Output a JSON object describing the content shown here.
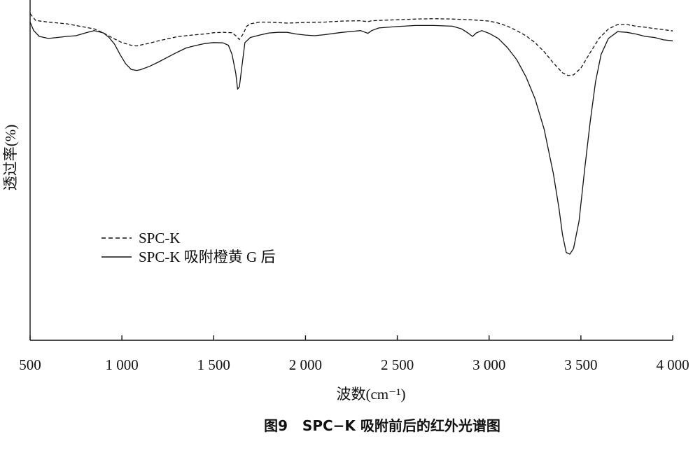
{
  "caption": "图9   SPC−K 吸附前后的红外光谱图",
  "chart_data": {
    "type": "line",
    "xlabel": "波数(cm⁻¹)",
    "ylabel": "透过率(%)",
    "xlim": [
      500,
      4000
    ],
    "ylim": [
      0,
      100
    ],
    "x_ticks": [
      500,
      1000,
      1500,
      2000,
      2500,
      3000,
      3500,
      4000
    ],
    "x_tick_labels": [
      "500",
      "1 000",
      "1 500",
      "2 000",
      "2 500",
      "3 000",
      "3 500",
      "4 000"
    ],
    "y_ticks_shown": false,
    "grid": false,
    "legend_position": "middle-left",
    "series": [
      {
        "name": "SPC-K",
        "style": "dashed",
        "color": "#111111",
        "points": [
          [
            500,
            96
          ],
          [
            530,
            94
          ],
          [
            600,
            93.5
          ],
          [
            700,
            93
          ],
          [
            800,
            92
          ],
          [
            850,
            91.5
          ],
          [
            900,
            90.3
          ],
          [
            950,
            88.8
          ],
          [
            1000,
            87.5
          ],
          [
            1050,
            86.7
          ],
          [
            1080,
            86.5
          ],
          [
            1150,
            87.3
          ],
          [
            1200,
            88
          ],
          [
            1300,
            89.2
          ],
          [
            1350,
            89.5
          ],
          [
            1400,
            89.8
          ],
          [
            1450,
            90
          ],
          [
            1500,
            90.4
          ],
          [
            1550,
            90.5
          ],
          [
            1600,
            90.4
          ],
          [
            1620,
            89.5
          ],
          [
            1640,
            88.4
          ],
          [
            1660,
            90
          ],
          [
            1680,
            92.3
          ],
          [
            1700,
            93
          ],
          [
            1750,
            93.5
          ],
          [
            1800,
            93.5
          ],
          [
            1900,
            93.2
          ],
          [
            2000,
            93.4
          ],
          [
            2100,
            93.5
          ],
          [
            2200,
            93.8
          ],
          [
            2300,
            93.9
          ],
          [
            2340,
            93.6
          ],
          [
            2360,
            93.9
          ],
          [
            2400,
            94
          ],
          [
            2500,
            94.2
          ],
          [
            2600,
            94.4
          ],
          [
            2700,
            94.5
          ],
          [
            2800,
            94.4
          ],
          [
            2900,
            94.2
          ],
          [
            3000,
            93.8
          ],
          [
            3050,
            93.2
          ],
          [
            3100,
            92.3
          ],
          [
            3150,
            91
          ],
          [
            3200,
            89.5
          ],
          [
            3250,
            87.5
          ],
          [
            3300,
            84.8
          ],
          [
            3350,
            81.5
          ],
          [
            3400,
            78.6
          ],
          [
            3430,
            77.8
          ],
          [
            3460,
            78
          ],
          [
            3500,
            80
          ],
          [
            3550,
            84.5
          ],
          [
            3600,
            88.8
          ],
          [
            3650,
            91.5
          ],
          [
            3700,
            92.8
          ],
          [
            3750,
            92.8
          ],
          [
            3800,
            92.3
          ],
          [
            3850,
            92
          ],
          [
            3900,
            91.6
          ],
          [
            3950,
            91.3
          ],
          [
            4000,
            90.9
          ]
        ]
      },
      {
        "name": "SPC-K 吸附橙黄 G 后",
        "style": "solid",
        "color": "#111111",
        "points": [
          [
            500,
            93.5
          ],
          [
            520,
            91
          ],
          [
            550,
            89.3
          ],
          [
            600,
            88.7
          ],
          [
            650,
            89
          ],
          [
            700,
            89.3
          ],
          [
            750,
            89.5
          ],
          [
            800,
            90.3
          ],
          [
            850,
            91
          ],
          [
            900,
            90.3
          ],
          [
            930,
            89
          ],
          [
            960,
            87
          ],
          [
            990,
            84
          ],
          [
            1020,
            81.3
          ],
          [
            1050,
            79.6
          ],
          [
            1080,
            79.3
          ],
          [
            1100,
            79.5
          ],
          [
            1150,
            80.5
          ],
          [
            1200,
            81.8
          ],
          [
            1250,
            83.2
          ],
          [
            1300,
            84.6
          ],
          [
            1350,
            85.9
          ],
          [
            1400,
            86.6
          ],
          [
            1450,
            87.2
          ],
          [
            1500,
            87.5
          ],
          [
            1550,
            87.4
          ],
          [
            1580,
            86.7
          ],
          [
            1600,
            84
          ],
          [
            1620,
            78.5
          ],
          [
            1630,
            73.8
          ],
          [
            1640,
            74.5
          ],
          [
            1655,
            81
          ],
          [
            1670,
            87.5
          ],
          [
            1700,
            89
          ],
          [
            1750,
            89.7
          ],
          [
            1800,
            90.3
          ],
          [
            1850,
            90.5
          ],
          [
            1900,
            90.5
          ],
          [
            1950,
            90
          ],
          [
            2000,
            89.7
          ],
          [
            2050,
            89.5
          ],
          [
            2100,
            89.8
          ],
          [
            2200,
            90.5
          ],
          [
            2300,
            91
          ],
          [
            2340,
            90.2
          ],
          [
            2360,
            91
          ],
          [
            2400,
            91.8
          ],
          [
            2500,
            92.2
          ],
          [
            2600,
            92.5
          ],
          [
            2700,
            92.5
          ],
          [
            2800,
            92.3
          ],
          [
            2850,
            91.5
          ],
          [
            2880,
            90.5
          ],
          [
            2910,
            89.3
          ],
          [
            2930,
            90.3
          ],
          [
            2960,
            91
          ],
          [
            3000,
            90.2
          ],
          [
            3050,
            88.7
          ],
          [
            3100,
            86
          ],
          [
            3150,
            82.5
          ],
          [
            3200,
            77.5
          ],
          [
            3250,
            71
          ],
          [
            3300,
            62
          ],
          [
            3350,
            49
          ],
          [
            3380,
            39
          ],
          [
            3400,
            31
          ],
          [
            3420,
            25.8
          ],
          [
            3440,
            25.3
          ],
          [
            3460,
            27
          ],
          [
            3490,
            35
          ],
          [
            3520,
            50
          ],
          [
            3550,
            64
          ],
          [
            3580,
            76
          ],
          [
            3610,
            84
          ],
          [
            3650,
            88.7
          ],
          [
            3700,
            90.7
          ],
          [
            3750,
            90.5
          ],
          [
            3800,
            90
          ],
          [
            3850,
            89.3
          ],
          [
            3900,
            89
          ],
          [
            3950,
            88.3
          ],
          [
            4000,
            88
          ]
        ]
      }
    ]
  }
}
